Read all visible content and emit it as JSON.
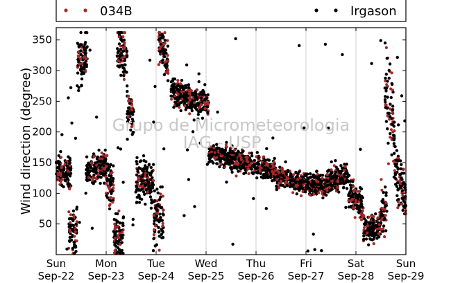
{
  "chart_data": {
    "type": "scatter",
    "title": "",
    "ylabel": "Wind direction (degree)",
    "xlabel": "",
    "ylim": [
      0,
      370
    ],
    "yticks": [
      50,
      100,
      150,
      200,
      250,
      300,
      350
    ],
    "xlim": [
      0,
      7
    ],
    "xticks": [
      {
        "day": "Sun",
        "date": "Sep-22"
      },
      {
        "day": "Mon",
        "date": "Sep-23"
      },
      {
        "day": "Tue",
        "date": "Sep-24"
      },
      {
        "day": "Wed",
        "date": "Sep-25"
      },
      {
        "day": "Thu",
        "date": "Sep-26"
      },
      {
        "day": "Fri",
        "date": "Sep-27"
      },
      {
        "day": "Sat",
        "date": "Sep-28"
      },
      {
        "day": "Sun",
        "date": "Sep-29"
      }
    ],
    "grid": "vertical",
    "legend_position": "top",
    "watermark": [
      "Grupo de Micrometeorologia",
      "IAG - USP"
    ],
    "series": [
      {
        "name": "034B",
        "color": "#a52a2a"
      },
      {
        "name": "Irgason",
        "color": "#000000"
      }
    ],
    "segments": [
      {
        "t0": 0.0,
        "t1": 0.3,
        "center": 135,
        "spread": 22,
        "trend": 0
      },
      {
        "t0": 0.25,
        "t1": 0.42,
        "center": 40,
        "spread": 30,
        "trend": 0
      },
      {
        "t0": 0.42,
        "t1": 0.62,
        "center": 320,
        "spread": 35,
        "trend": 0
      },
      {
        "t0": 0.6,
        "t1": 1.0,
        "center": 140,
        "spread": 20,
        "trend": 10
      },
      {
        "t0": 1.0,
        "t1": 1.15,
        "center": 115,
        "spread": 35,
        "trend": 0
      },
      {
        "t0": 1.15,
        "t1": 1.35,
        "center": 30,
        "spread": 28,
        "trend": 0
      },
      {
        "t0": 1.22,
        "t1": 1.42,
        "center": 330,
        "spread": 30,
        "trend": -20
      },
      {
        "t0": 1.42,
        "t1": 1.55,
        "center": 235,
        "spread": 25,
        "trend": -30
      },
      {
        "t0": 1.6,
        "t1": 1.95,
        "center": 120,
        "spread": 30,
        "trend": 0
      },
      {
        "t0": 1.95,
        "t1": 2.15,
        "center": 65,
        "spread": 40,
        "trend": 0
      },
      {
        "t0": 2.05,
        "t1": 2.25,
        "center": 330,
        "spread": 28,
        "trend": -40
      },
      {
        "t0": 2.3,
        "t1": 3.05,
        "center": 255,
        "spread": 18,
        "trend": -25
      },
      {
        "t0": 3.05,
        "t1": 4.4,
        "center": 152,
        "spread": 14,
        "trend": -30
      },
      {
        "t0": 4.4,
        "t1": 5.4,
        "center": 118,
        "spread": 14,
        "trend": -15
      },
      {
        "t0": 5.4,
        "t1": 5.85,
        "center": 125,
        "spread": 18,
        "trend": 10
      },
      {
        "t0": 5.85,
        "t1": 6.15,
        "center": 90,
        "spread": 22,
        "trend": -30
      },
      {
        "t0": 6.15,
        "t1": 6.5,
        "center": 45,
        "spread": 18,
        "trend": 10
      },
      {
        "t0": 6.5,
        "t1": 6.62,
        "center": 70,
        "spread": 30,
        "trend": 0
      },
      {
        "t0": 6.58,
        "t1": 6.78,
        "center": 240,
        "spread": 60,
        "trend": -80
      },
      {
        "t0": 6.78,
        "t1": 7.0,
        "center": 110,
        "spread": 40,
        "trend": -40
      }
    ]
  }
}
